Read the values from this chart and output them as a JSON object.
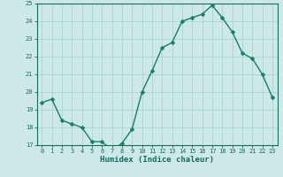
{
  "x": [
    0,
    1,
    2,
    3,
    4,
    5,
    6,
    7,
    8,
    9,
    10,
    11,
    12,
    13,
    14,
    15,
    16,
    17,
    18,
    19,
    20,
    21,
    22,
    23
  ],
  "y": [
    19.4,
    19.6,
    18.4,
    18.2,
    18.0,
    17.2,
    17.2,
    16.7,
    17.1,
    17.9,
    20.0,
    21.2,
    22.5,
    22.8,
    24.0,
    24.2,
    24.4,
    24.9,
    24.2,
    23.4,
    22.2,
    21.9,
    21.0,
    19.7
  ],
  "line_color": "#1a7a6e",
  "marker": "D",
  "markersize": 2.5,
  "linewidth": 1.0,
  "bg_color": "#cce9e7",
  "grid_color": "#aad4d1",
  "xlabel": "Humidex (Indice chaleur)",
  "ylim": [
    17,
    25
  ],
  "xlim": [
    -0.5,
    23.5
  ],
  "yticks": [
    17,
    18,
    19,
    20,
    21,
    22,
    23,
    24,
    25
  ],
  "xticks": [
    0,
    1,
    2,
    3,
    4,
    5,
    6,
    7,
    8,
    9,
    10,
    11,
    12,
    13,
    14,
    15,
    16,
    17,
    18,
    19,
    20,
    21,
    22,
    23
  ],
  "axis_color": "#1a6a60",
  "font_color": "#1a6a60",
  "tick_fontsize": 5.0,
  "xlabel_fontsize": 6.5
}
